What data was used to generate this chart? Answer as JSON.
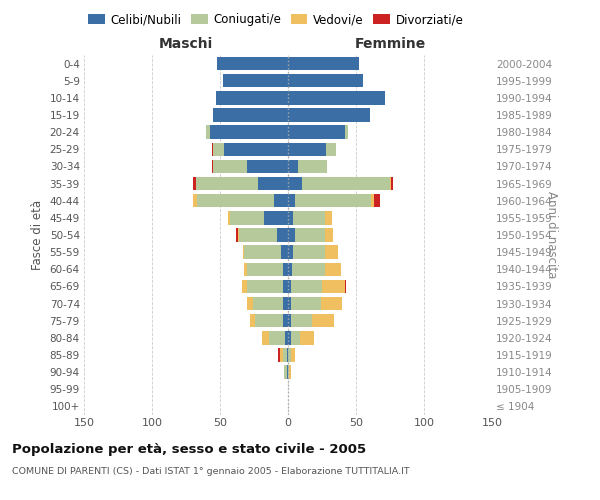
{
  "age_groups": [
    "100+",
    "95-99",
    "90-94",
    "85-89",
    "80-84",
    "75-79",
    "70-74",
    "65-69",
    "60-64",
    "55-59",
    "50-54",
    "45-49",
    "40-44",
    "35-39",
    "30-34",
    "25-29",
    "20-24",
    "15-19",
    "10-14",
    "5-9",
    "0-4"
  ],
  "birth_years": [
    "≤ 1904",
    "1905-1909",
    "1910-1914",
    "1915-1919",
    "1920-1924",
    "1925-1929",
    "1930-1934",
    "1935-1939",
    "1940-1944",
    "1945-1949",
    "1950-1954",
    "1955-1959",
    "1960-1964",
    "1965-1969",
    "1970-1974",
    "1975-1979",
    "1980-1984",
    "1985-1989",
    "1990-1994",
    "1995-1999",
    "2000-2004"
  ],
  "maschi": {
    "celibi": [
      0,
      0,
      1,
      1,
      2,
      4,
      4,
      4,
      4,
      5,
      8,
      18,
      10,
      22,
      30,
      47,
      57,
      55,
      53,
      48,
      52
    ],
    "coniugati": [
      0,
      0,
      2,
      3,
      12,
      20,
      22,
      26,
      26,
      27,
      28,
      25,
      57,
      46,
      25,
      8,
      3,
      0,
      0,
      0,
      0
    ],
    "vedovi": [
      0,
      0,
      0,
      2,
      5,
      4,
      4,
      4,
      2,
      1,
      1,
      1,
      3,
      0,
      0,
      0,
      0,
      0,
      0,
      0,
      0
    ],
    "divorziati": [
      0,
      0,
      0,
      1,
      0,
      0,
      0,
      0,
      0,
      0,
      1,
      0,
      0,
      2,
      1,
      1,
      0,
      0,
      0,
      0,
      0
    ]
  },
  "femmine": {
    "nubili": [
      0,
      0,
      0,
      0,
      2,
      2,
      2,
      2,
      3,
      4,
      5,
      4,
      5,
      10,
      7,
      28,
      42,
      60,
      71,
      55,
      52
    ],
    "coniugate": [
      0,
      0,
      1,
      2,
      7,
      16,
      22,
      23,
      24,
      23,
      22,
      23,
      56,
      65,
      22,
      7,
      2,
      0,
      0,
      0,
      0
    ],
    "vedove": [
      0,
      0,
      1,
      3,
      10,
      16,
      16,
      17,
      12,
      10,
      6,
      5,
      2,
      1,
      0,
      0,
      0,
      0,
      0,
      0,
      0
    ],
    "divorziate": [
      0,
      0,
      0,
      0,
      0,
      0,
      0,
      1,
      0,
      0,
      0,
      0,
      5,
      1,
      0,
      0,
      0,
      0,
      0,
      0,
      0
    ]
  },
  "color_celibi": "#3a6ea5",
  "color_coniugati": "#b5c99a",
  "color_vedovi": "#f0c060",
  "color_divorziati": "#cc2222",
  "xlim": 150,
  "title": "Popolazione per età, sesso e stato civile - 2005",
  "subtitle": "COMUNE DI PARENTI (CS) - Dati ISTAT 1° gennaio 2005 - Elaborazione TUTTITALIA.IT",
  "xlabel_left": "Maschi",
  "xlabel_right": "Femmine",
  "ylabel_left": "Fasce di età",
  "ylabel_right": "Anni di nascita"
}
